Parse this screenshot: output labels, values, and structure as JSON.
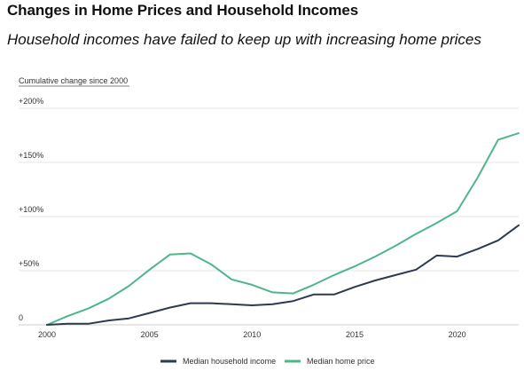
{
  "title": "Changes in Home Prices and Household Incomes",
  "subtitle": "Household incomes have failed to keep up with increasing home prices",
  "chart_data": {
    "type": "line",
    "ylabel": "Cumulative change since 2000",
    "xlim": [
      2000,
      2023
    ],
    "ylim": [
      0,
      200
    ],
    "x_ticks": [
      2000,
      2005,
      2010,
      2015,
      2020
    ],
    "x_tick_labels": [
      "2000",
      "2005",
      "2010",
      "2015",
      "2020"
    ],
    "y_ticks": [
      0,
      50,
      100,
      150,
      200
    ],
    "y_tick_labels": [
      "0",
      "+50%",
      "+100%",
      "+150%",
      "+200%"
    ],
    "grid": true,
    "legend_position": "bottom",
    "x": [
      2000,
      2001,
      2002,
      2003,
      2004,
      2005,
      2006,
      2007,
      2008,
      2009,
      2010,
      2011,
      2012,
      2013,
      2014,
      2015,
      2016,
      2017,
      2018,
      2019,
      2020,
      2021,
      2022,
      2023
    ],
    "series": [
      {
        "name": "Median household income",
        "color": "#2e3a4f",
        "values": [
          0,
          1,
          1,
          4,
          6,
          11,
          16,
          20,
          20,
          19,
          18,
          19,
          22,
          28,
          28,
          35,
          41,
          46,
          51,
          64,
          63,
          70,
          78,
          92
        ]
      },
      {
        "name": "Median home price",
        "color": "#4fb58a",
        "values": [
          0,
          8,
          15,
          24,
          36,
          51,
          65,
          66,
          56,
          42,
          37,
          30,
          29,
          37,
          46,
          54,
          63,
          73,
          84,
          94,
          105,
          136,
          171,
          177
        ]
      }
    ]
  }
}
